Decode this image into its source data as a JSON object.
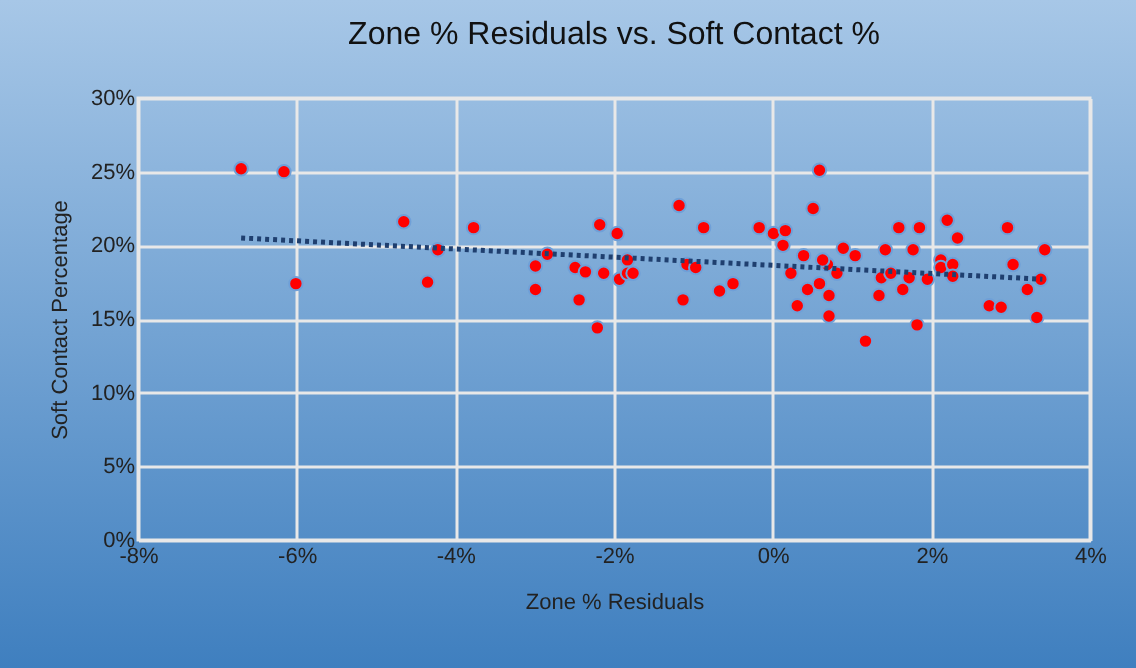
{
  "chart_data": {
    "type": "scatter",
    "title": "Zone % Residuals vs. Soft Contact %",
    "xlabel": "Zone % Residuals",
    "ylabel": "Soft Contact Percentage",
    "xlim": [
      -8,
      4
    ],
    "ylim": [
      0,
      30
    ],
    "xticks": [
      {
        "value": -8,
        "label": "-8%"
      },
      {
        "value": -6,
        "label": "-6%"
      },
      {
        "value": -4,
        "label": "-4%"
      },
      {
        "value": -2,
        "label": "-2%"
      },
      {
        "value": 0,
        "label": "0%"
      },
      {
        "value": 2,
        "label": "2%"
      },
      {
        "value": 4,
        "label": "4%"
      }
    ],
    "yticks": [
      {
        "value": 0,
        "label": "0%"
      },
      {
        "value": 5,
        "label": "5%"
      },
      {
        "value": 10,
        "label": "10%"
      },
      {
        "value": 15,
        "label": "15%"
      },
      {
        "value": 20,
        "label": "20%"
      },
      {
        "value": 25,
        "label": "25%"
      },
      {
        "value": 30,
        "label": "30%"
      }
    ],
    "grid": true,
    "series": [
      {
        "type": "scatter",
        "color": "#ff0000",
        "marker": "circle",
        "x": [
          -6.7,
          -6.16,
          -4.65,
          -4.22,
          -6.01,
          -4.35,
          -3.77,
          -2.99,
          -2.99,
          -2.84,
          -2.49,
          -2.36,
          -2.44,
          -2.18,
          -1.96,
          -2.13,
          -2.21,
          -1.83,
          -1.93,
          -1.83,
          -1.76,
          -1.18,
          -0.87,
          -1.08,
          -0.97,
          -1.13,
          -0.67,
          -0.5,
          -0.17,
          0.01,
          0.16,
          0.13,
          0.59,
          0.51,
          0.39,
          0.23,
          0.44,
          0.31,
          0.59,
          0.69,
          0.63,
          0.71,
          0.71,
          0.81,
          0.89,
          1.04,
          1.17,
          1.42,
          1.37,
          1.34,
          1.49,
          1.59,
          1.85,
          1.77,
          1.72,
          1.64,
          1.82,
          1.95,
          2.2,
          2.33,
          2.12,
          2.12,
          2.27,
          2.27,
          2.73,
          2.88,
          2.96,
          3.03,
          3.21,
          3.33,
          3.38,
          3.43
        ],
        "values": [
          25.2,
          25.0,
          21.6,
          19.7,
          17.4,
          17.5,
          21.2,
          18.6,
          17.0,
          19.4,
          18.5,
          18.2,
          16.3,
          21.4,
          20.8,
          18.1,
          14.4,
          19.0,
          17.7,
          18.1,
          18.1,
          22.7,
          21.2,
          18.7,
          18.5,
          16.3,
          16.9,
          17.4,
          21.2,
          20.8,
          21.0,
          20.0,
          25.1,
          22.5,
          19.3,
          18.1,
          17.0,
          15.9,
          17.4,
          18.7,
          19.0,
          16.6,
          15.2,
          18.1,
          19.8,
          19.3,
          13.5,
          19.7,
          17.8,
          16.6,
          18.1,
          21.2,
          21.2,
          19.7,
          17.8,
          17.0,
          14.6,
          17.7,
          21.7,
          20.5,
          19.0,
          18.5,
          18.7,
          17.9,
          15.9,
          15.8,
          21.2,
          18.7,
          17.0,
          15.1,
          17.7,
          19.7
        ]
      },
      {
        "type": "line",
        "color": "#1f3f6f",
        "line_style": "dotted",
        "marker": "none",
        "x": [
          -6.7,
          3.4
        ],
        "values": [
          20.5,
          17.7
        ]
      }
    ]
  }
}
